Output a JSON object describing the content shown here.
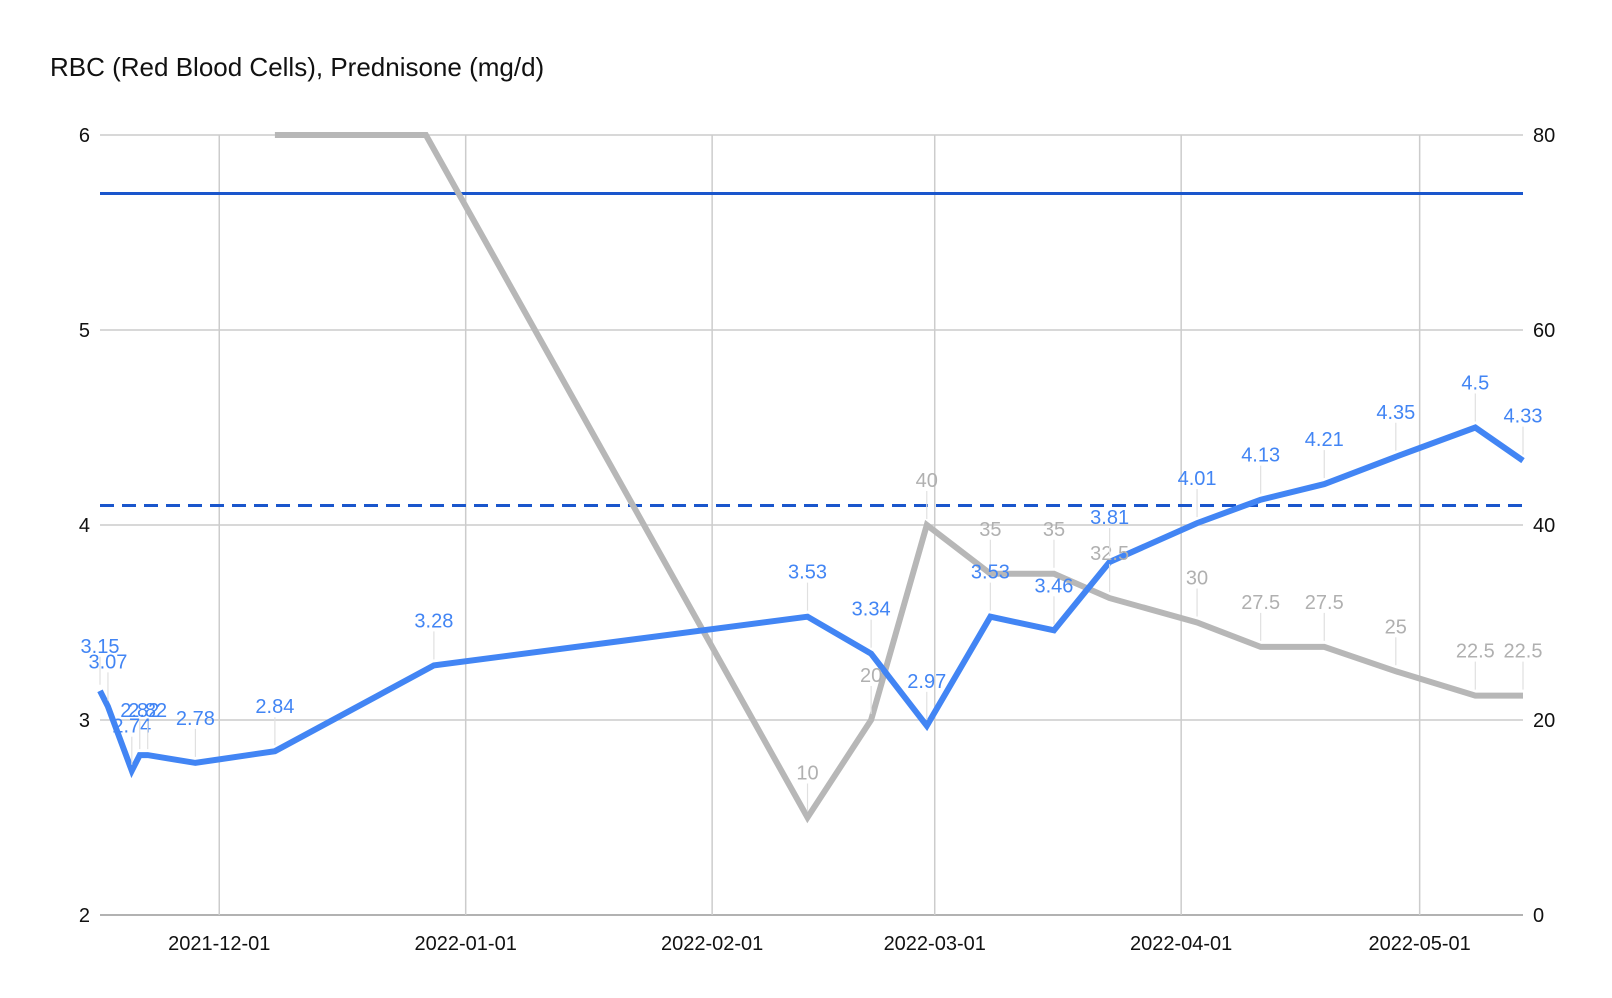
{
  "chart_data": {
    "type": "line",
    "title": "RBC (Red Blood Cells), Prednisone (mg/d)",
    "xlim": [
      "2021-11-16",
      "2022-05-14"
    ],
    "x_ticks": [
      "2021-12-01",
      "2022-01-01",
      "2022-02-01",
      "2022-03-01",
      "2022-04-01",
      "2022-05-01"
    ],
    "y_left": {
      "lim": [
        2,
        6
      ],
      "ticks": [
        "2",
        "3",
        "4",
        "5",
        "6"
      ]
    },
    "y_right": {
      "lim": [
        0,
        80
      ],
      "ticks": [
        "0",
        "20",
        "40",
        "60",
        "80"
      ]
    },
    "grid": true,
    "reference_lines": [
      {
        "axis": "left",
        "y": 5.7,
        "style": "solid",
        "color": "#1a56cc"
      },
      {
        "axis": "left",
        "y": 4.1,
        "style": "dashed",
        "color": "#1a56cc"
      }
    ],
    "series": [
      {
        "axis": "left",
        "color": "#4285f4",
        "labels": true,
        "points": [
          {
            "x": "2021-11-16",
            "y": 3.15
          },
          {
            "x": "2021-11-17",
            "y": 3.07
          },
          {
            "x": "2021-11-20",
            "y": 2.74
          },
          {
            "x": "2021-11-21",
            "y": 2.82
          },
          {
            "x": "2021-11-22",
            "y": 2.82
          },
          {
            "x": "2021-11-28",
            "y": 2.78
          },
          {
            "x": "2021-12-08",
            "y": 2.84
          },
          {
            "x": "2021-12-28",
            "y": 3.28
          },
          {
            "x": "2022-02-13",
            "y": 3.53
          },
          {
            "x": "2022-02-21",
            "y": 3.34
          },
          {
            "x": "2022-02-28",
            "y": 2.97
          },
          {
            "x": "2022-03-08",
            "y": 3.53
          },
          {
            "x": "2022-03-16",
            "y": 3.46
          },
          {
            "x": "2022-03-23",
            "y": 3.81
          },
          {
            "x": "2022-04-03",
            "y": 4.01
          },
          {
            "x": "2022-04-11",
            "y": 4.13
          },
          {
            "x": "2022-04-19",
            "y": 4.21
          },
          {
            "x": "2022-04-28",
            "y": 4.35
          },
          {
            "x": "2022-05-08",
            "y": 4.5
          },
          {
            "x": "2022-05-14",
            "y": 4.33
          }
        ]
      },
      {
        "axis": "right",
        "color": "#b7b7b7",
        "labels": true,
        "points": [
          {
            "x": "2021-12-08",
            "y": 80,
            "label": false
          },
          {
            "x": "2021-12-27",
            "y": 80,
            "label": false
          },
          {
            "x": "2022-02-13",
            "y": 10
          },
          {
            "x": "2022-02-21",
            "y": 20
          },
          {
            "x": "2022-02-28",
            "y": 40
          },
          {
            "x": "2022-03-08",
            "y": 35
          },
          {
            "x": "2022-03-16",
            "y": 35
          },
          {
            "x": "2022-03-23",
            "y": 32.5
          },
          {
            "x": "2022-04-03",
            "y": 30
          },
          {
            "x": "2022-04-11",
            "y": 27.5
          },
          {
            "x": "2022-04-19",
            "y": 27.5
          },
          {
            "x": "2022-04-28",
            "y": 25
          },
          {
            "x": "2022-05-08",
            "y": 22.5
          },
          {
            "x": "2022-05-14",
            "y": 22.5
          }
        ]
      }
    ]
  }
}
